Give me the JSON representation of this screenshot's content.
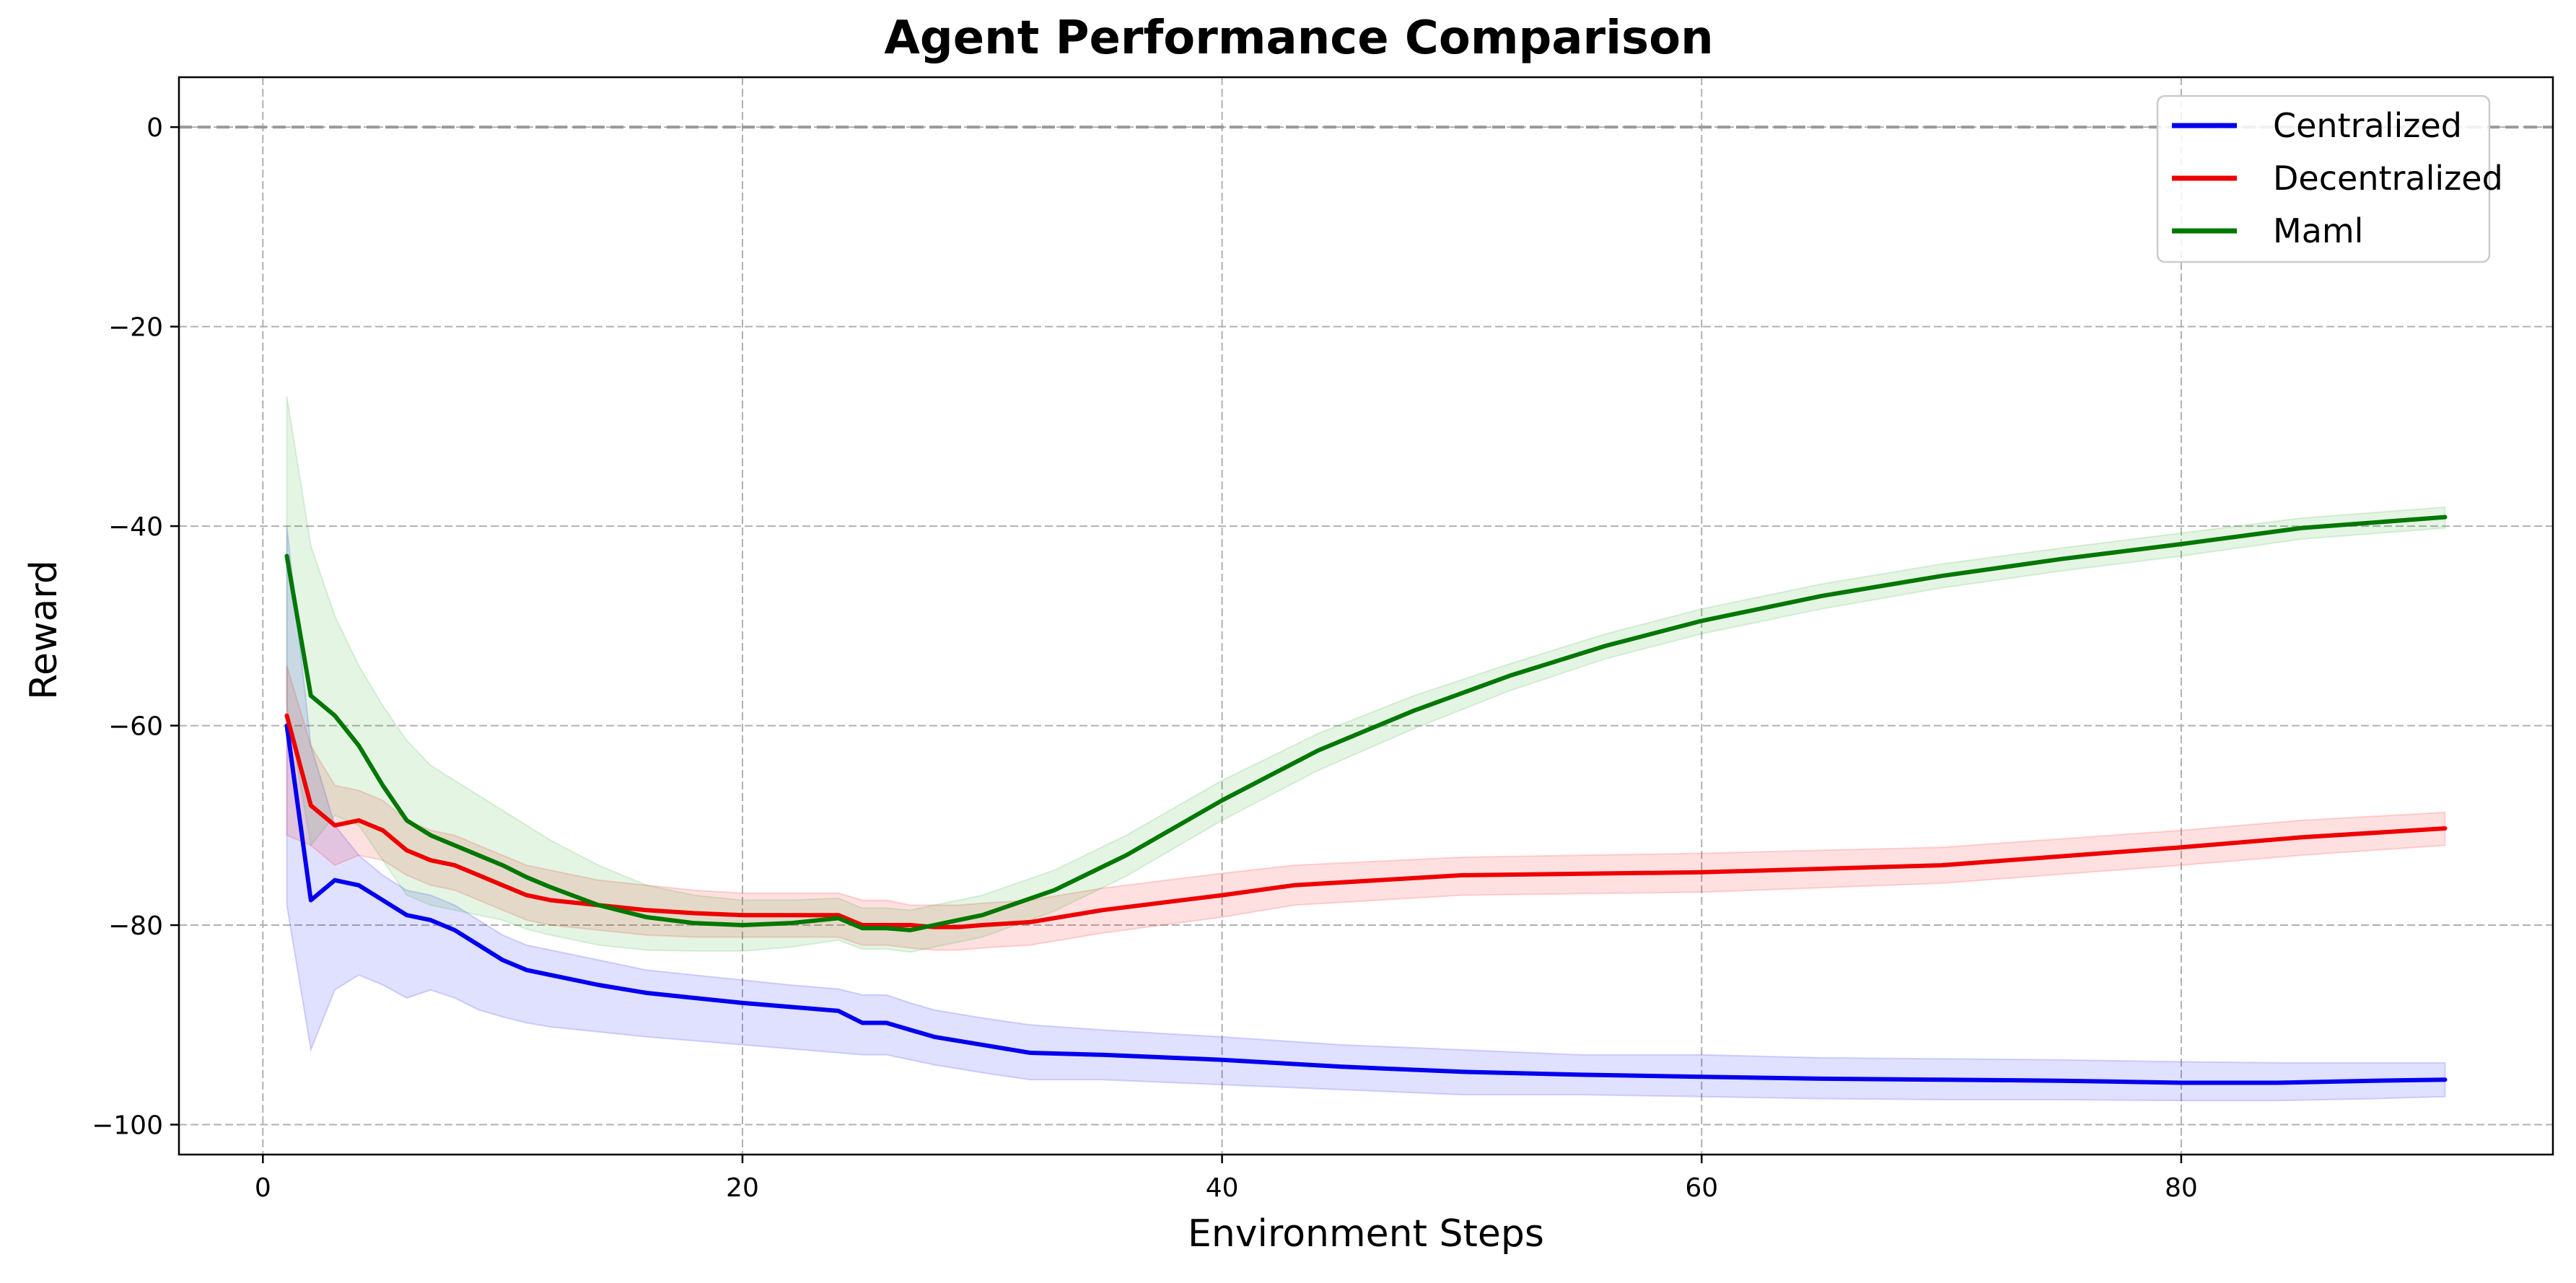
{
  "chart_data": {
    "type": "line",
    "title": "Agent Performance Comparison",
    "xlabel": "Environment Steps",
    "ylabel": "Reward",
    "xlim": [
      -3.5,
      95.5
    ],
    "ylim": [
      -103,
      5
    ],
    "xticks": [
      0,
      20,
      40,
      60,
      80
    ],
    "yticks": [
      0,
      -20,
      -40,
      -60,
      -80,
      -100
    ],
    "xtick_labels": [
      "0",
      "20",
      "40",
      "60",
      "80"
    ],
    "ytick_labels": [
      "0",
      "−20",
      "−40",
      "−60",
      "−80",
      "−100"
    ],
    "grid": true,
    "reference_line": {
      "y": 0,
      "style": "dashed",
      "color": "#999999"
    },
    "legend": {
      "position": "top-right",
      "entries": [
        "Centralized",
        "Decentralized",
        "Maml"
      ]
    },
    "series": [
      {
        "name": "Centralized",
        "color": "#0000ee",
        "band_color": "#0000ff",
        "x": [
          1,
          2,
          3,
          4,
          5,
          6,
          7,
          8,
          9,
          10,
          11,
          12,
          14,
          16,
          18,
          20,
          22,
          24,
          25,
          26,
          27,
          28,
          30,
          32,
          35,
          40,
          45,
          50,
          55,
          60,
          65,
          70,
          75,
          80,
          84,
          88,
          91
        ],
        "y": [
          -60,
          -77.5,
          -75.5,
          -76,
          -77.5,
          -79,
          -79.5,
          -80.5,
          -82,
          -83.5,
          -84.5,
          -85,
          -86,
          -86.8,
          -87.3,
          -87.8,
          -88.2,
          -88.6,
          -89.8,
          -89.8,
          -90.5,
          -91.2,
          -92,
          -92.8,
          -93,
          -93.5,
          -94.2,
          -94.7,
          -95,
          -95.2,
          -95.4,
          -95.5,
          -95.6,
          -95.8,
          -95.8,
          -95.6,
          -95.5
        ],
        "upper": [
          -40,
          -62,
          -70,
          -73,
          -75,
          -76.5,
          -77,
          -78,
          -79.5,
          -81,
          -82,
          -82.5,
          -83.5,
          -84.5,
          -85,
          -85.5,
          -86,
          -86.4,
          -87,
          -87,
          -87.8,
          -88.5,
          -89.3,
          -90,
          -90.5,
          -91.2,
          -92,
          -92.5,
          -93,
          -93,
          -93.3,
          -93.4,
          -93.5,
          -93.7,
          -93.8,
          -93.8,
          -93.8
        ],
        "lower": [
          -78,
          -92.5,
          -86.5,
          -85,
          -86,
          -87.3,
          -86.5,
          -87.3,
          -88.5,
          -89.2,
          -89.8,
          -90.2,
          -90.7,
          -91.2,
          -91.6,
          -92,
          -92.4,
          -92.8,
          -93,
          -93,
          -93.5,
          -94,
          -94.8,
          -95.5,
          -95.5,
          -96,
          -96.5,
          -97,
          -97,
          -97.2,
          -97.4,
          -97.5,
          -97.5,
          -97.6,
          -97.6,
          -97.4,
          -97.2
        ]
      },
      {
        "name": "Decentralized",
        "color": "#ee0000",
        "band_color": "#ff0000",
        "x": [
          1,
          2,
          3,
          4,
          5,
          6,
          7,
          8,
          9,
          10,
          11,
          12,
          14,
          16,
          18,
          20,
          22,
          24,
          25,
          26,
          27,
          28,
          29,
          30,
          32,
          35,
          40,
          43,
          50,
          60,
          70,
          80,
          85,
          91
        ],
        "y": [
          -59,
          -68,
          -70,
          -69.5,
          -70.5,
          -72.5,
          -73.5,
          -74,
          -75,
          -76,
          -77,
          -77.5,
          -78,
          -78.5,
          -78.8,
          -79,
          -79,
          -79,
          -80,
          -80,
          -80,
          -80.2,
          -80.2,
          -80,
          -79.7,
          -78.5,
          -77,
          -76,
          -75,
          -74.7,
          -74,
          -72.2,
          -71.2,
          -70.3
        ],
        "upper": [
          -54,
          -62,
          -66,
          -66.5,
          -67.5,
          -69.5,
          -70.5,
          -71,
          -72,
          -73,
          -74,
          -74.5,
          -75.5,
          -76,
          -76.5,
          -76.8,
          -76.8,
          -76.8,
          -77.5,
          -77.5,
          -78,
          -78,
          -78,
          -77.8,
          -77.5,
          -76.3,
          -74.8,
          -74,
          -73.2,
          -72.8,
          -72.2,
          -70.5,
          -69.5,
          -68.7
        ],
        "lower": [
          -71,
          -72,
          -74,
          -73,
          -73.5,
          -75,
          -76,
          -76.5,
          -77.5,
          -78.5,
          -79.5,
          -80,
          -80.5,
          -81,
          -81.2,
          -81.2,
          -81.2,
          -81.2,
          -82,
          -82,
          -82.3,
          -82.5,
          -82.5,
          -82.3,
          -82,
          -80.8,
          -79.2,
          -78,
          -77,
          -76.7,
          -75.8,
          -74,
          -73,
          -72
        ]
      },
      {
        "name": "Maml",
        "color": "#007700",
        "band_color": "#22aa22",
        "x": [
          1,
          2,
          3,
          4,
          5,
          6,
          7,
          8,
          9,
          10,
          11,
          12,
          14,
          16,
          18,
          20,
          22,
          24,
          25,
          26,
          27,
          28,
          30,
          33,
          36,
          40,
          44,
          48,
          52,
          56,
          60,
          65,
          70,
          75,
          80,
          85,
          91
        ],
        "y": [
          -43,
          -57,
          -59,
          -62,
          -66,
          -69.5,
          -71,
          -72,
          -73,
          -74,
          -75.2,
          -76.2,
          -78,
          -79.2,
          -79.8,
          -80,
          -79.8,
          -79.3,
          -80.3,
          -80.3,
          -80.5,
          -80,
          -79,
          -76.5,
          -73,
          -67.5,
          -62.5,
          -58.5,
          -55,
          -52,
          -49.5,
          -47,
          -45,
          -43.3,
          -41.8,
          -40.2,
          -39.1
        ],
        "upper": [
          -27,
          -42,
          -49,
          -54,
          -58,
          -61.5,
          -64,
          -65.5,
          -67,
          -68.5,
          -70,
          -71.5,
          -74,
          -76,
          -77,
          -77.5,
          -77.5,
          -77.3,
          -78.3,
          -78.3,
          -78.5,
          -78,
          -77,
          -74.5,
          -71,
          -65.5,
          -60.8,
          -57,
          -53.8,
          -50.8,
          -48.3,
          -45.8,
          -43.8,
          -42.2,
          -40.7,
          -39.2,
          -38.1
        ],
        "lower": [
          -58,
          -72,
          -69,
          -70,
          -73.5,
          -77,
          -78,
          -78.5,
          -79,
          -79.5,
          -80.4,
          -81,
          -82,
          -82.5,
          -82.6,
          -82.6,
          -82.2,
          -81.5,
          -82.4,
          -82.4,
          -82.7,
          -82.2,
          -81.2,
          -78.6,
          -75.1,
          -69.5,
          -64.5,
          -60.3,
          -56.5,
          -53.3,
          -50.8,
          -48.3,
          -46.2,
          -44.5,
          -43,
          -41.3,
          -40.2
        ]
      }
    ]
  }
}
